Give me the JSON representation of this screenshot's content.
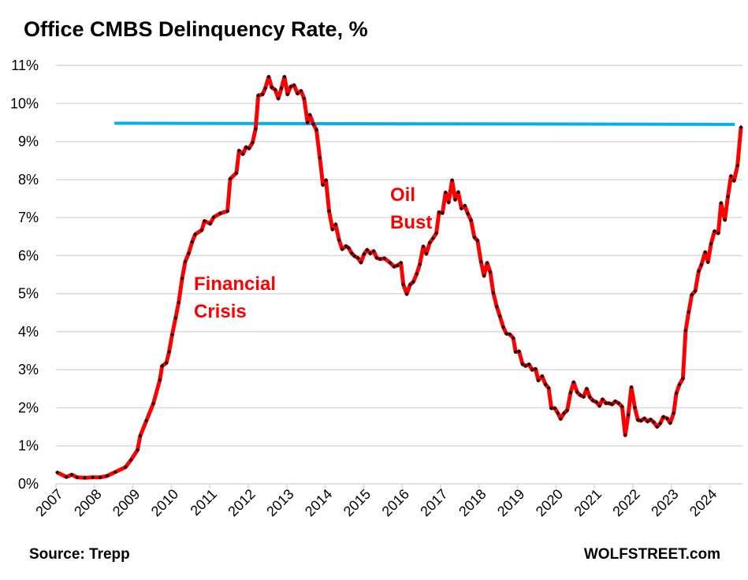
{
  "chart_data": {
    "type": "line",
    "title": "Office CMBS Delinquency Rate, %",
    "xlabel": "",
    "ylabel": "",
    "ylim": [
      0,
      11
    ],
    "xlim": [
      2007,
      2024.85
    ],
    "y_ticks": [
      "0%",
      "1%",
      "2%",
      "3%",
      "4%",
      "5%",
      "6%",
      "7%",
      "8%",
      "9%",
      "10%",
      "11%"
    ],
    "x_ticks": [
      "2007",
      "2008",
      "2009",
      "2010",
      "2011",
      "2012",
      "2013",
      "2014",
      "2015",
      "2016",
      "2017",
      "2018",
      "2019",
      "2020",
      "2021",
      "2022",
      "2023",
      "2024"
    ],
    "grid": "horizontal",
    "legend": "none",
    "colors": {
      "series": "#ff0000",
      "markers": "#000000",
      "reference": "#00b0f0",
      "annotation": "#ff0000",
      "grid": "#d9d9d9"
    },
    "series": [
      {
        "x": [
          2007.03,
          2007.27,
          2007.41,
          2007.55,
          2007.75,
          2007.96,
          2008.15,
          2008.33,
          2008.54,
          2008.81,
          2008.95,
          2009.12,
          2009.19,
          2009.35,
          2009.53,
          2009.7,
          2009.76,
          2009.87,
          2009.94,
          2010.02,
          2010.11,
          2010.19,
          2010.28,
          2010.36,
          2010.45,
          2010.54,
          2010.62,
          2010.79,
          2010.86,
          2011.01,
          2011.1,
          2011.27,
          2011.46,
          2011.53,
          2011.69,
          2011.76,
          2011.86,
          2011.94,
          2012.02,
          2012.11,
          2012.19,
          2012.26,
          2012.37,
          2012.44,
          2012.53,
          2012.61,
          2012.7,
          2012.78,
          2012.86,
          2012.94,
          2013.02,
          2013.1,
          2013.19,
          2013.28,
          2013.37,
          2013.45,
          2013.54,
          2013.6,
          2013.69,
          2013.77,
          2013.86,
          2013.94,
          2014.02,
          2014.1,
          2014.19,
          2014.27,
          2014.36,
          2014.44,
          2014.54,
          2014.61,
          2014.69,
          2014.76,
          2014.85,
          2014.93,
          2015.01,
          2015.09,
          2015.17,
          2015.26,
          2015.34,
          2015.43,
          2015.54,
          2015.69,
          2015.79,
          2015.88,
          2015.97,
          2016.03,
          2016.12,
          2016.21,
          2016.29,
          2016.38,
          2016.46,
          2016.55,
          2016.63,
          2016.72,
          2016.8,
          2016.89,
          2016.96,
          2017.05,
          2017.13,
          2017.21,
          2017.3,
          2017.38,
          2017.46,
          2017.54,
          2017.63,
          2017.71,
          2017.79,
          2017.88,
          2017.96,
          2018.05,
          2018.13,
          2018.21,
          2018.29,
          2018.37,
          2018.46,
          2018.54,
          2018.63,
          2018.71,
          2018.8,
          2018.89,
          2018.95,
          2019.04,
          2019.13,
          2019.21,
          2019.3,
          2019.38,
          2019.47,
          2019.54,
          2019.64,
          2019.73,
          2019.81,
          2019.88,
          2019.97,
          2020.05,
          2020.12,
          2020.21,
          2020.29,
          2020.38,
          2020.46,
          2020.55,
          2020.63,
          2020.72,
          2020.8,
          2020.88,
          2020.96,
          2021.05,
          2021.13,
          2021.21,
          2021.3,
          2021.38,
          2021.46,
          2021.54,
          2021.63,
          2021.72,
          2021.8,
          2021.88,
          2021.96,
          2022.05,
          2022.13,
          2022.21,
          2022.3,
          2022.38,
          2022.46,
          2022.54,
          2022.63,
          2022.71,
          2022.79,
          2022.89,
          2022.97,
          2023.06,
          2023.13,
          2023.21,
          2023.3,
          2023.37,
          2023.45,
          2023.53,
          2023.62,
          2023.71,
          2023.78,
          2023.88,
          2023.95,
          2024.03,
          2024.12,
          2024.22,
          2024.29,
          2024.39,
          2024.47,
          2024.55,
          2024.63,
          2024.72,
          2024.81
        ],
        "y": [
          0.3,
          0.18,
          0.24,
          0.17,
          0.16,
          0.17,
          0.17,
          0.21,
          0.31,
          0.44,
          0.63,
          0.89,
          1.26,
          1.66,
          2.11,
          2.73,
          3.1,
          3.18,
          3.47,
          3.92,
          4.36,
          4.77,
          5.4,
          5.84,
          6.06,
          6.36,
          6.56,
          6.67,
          6.91,
          6.84,
          7.01,
          7.11,
          7.17,
          8.02,
          8.17,
          8.76,
          8.67,
          8.85,
          8.82,
          8.97,
          9.33,
          10.21,
          10.24,
          10.4,
          10.7,
          10.42,
          10.36,
          10.13,
          10.4,
          10.7,
          10.24,
          10.44,
          10.48,
          10.26,
          10.33,
          10.13,
          9.5,
          9.7,
          9.46,
          9.31,
          8.57,
          7.86,
          7.98,
          7.17,
          6.69,
          6.82,
          6.41,
          6.17,
          6.25,
          6.2,
          6.06,
          5.99,
          5.94,
          5.82,
          6.04,
          6.15,
          6.06,
          6.12,
          5.94,
          5.91,
          5.93,
          5.81,
          5.71,
          5.74,
          5.81,
          5.24,
          4.99,
          5.24,
          5.31,
          5.52,
          5.77,
          6.24,
          6.05,
          6.34,
          6.45,
          6.59,
          7.14,
          7.12,
          7.66,
          7.4,
          7.98,
          7.47,
          7.67,
          7.24,
          7.31,
          7.1,
          6.93,
          6.48,
          6.4,
          5.84,
          5.47,
          5.81,
          5.57,
          5.02,
          4.66,
          4.41,
          4.12,
          3.95,
          3.93,
          3.83,
          3.47,
          3.48,
          3.15,
          3.1,
          3.14,
          3.0,
          3.02,
          2.72,
          2.83,
          2.61,
          2.52,
          1.99,
          1.99,
          1.86,
          1.71,
          1.86,
          1.93,
          2.4,
          2.67,
          2.41,
          2.33,
          2.29,
          2.5,
          2.28,
          2.19,
          2.15,
          2.05,
          2.22,
          2.12,
          2.12,
          2.09,
          2.17,
          2.12,
          2.03,
          1.28,
          1.81,
          2.54,
          2.01,
          1.68,
          1.66,
          1.72,
          1.64,
          1.69,
          1.62,
          1.5,
          1.59,
          1.76,
          1.72,
          1.6,
          1.86,
          2.38,
          2.61,
          2.77,
          4.03,
          4.52,
          4.97,
          5.07,
          5.59,
          5.76,
          6.09,
          5.83,
          6.31,
          6.64,
          6.59,
          7.38,
          6.94,
          7.55,
          8.09,
          7.97,
          8.37,
          9.38
        ]
      }
    ],
    "reference_line": {
      "x": [
        2008.52,
        2024.65
      ],
      "y": [
        9.48,
        9.45
      ]
    },
    "annotations": [
      "Financial",
      "Crisis",
      "Oil",
      "Bust"
    ]
  },
  "footer": {
    "source": "Source: Trepp",
    "brand": "WOLFSTREET.com"
  }
}
